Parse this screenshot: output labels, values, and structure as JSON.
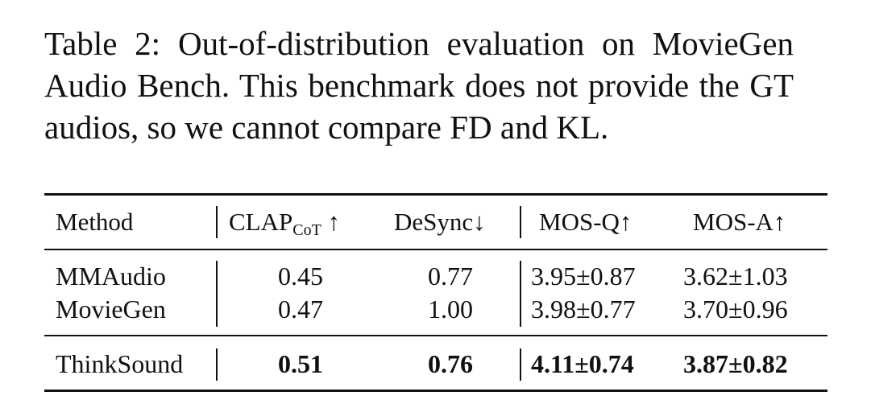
{
  "caption": {
    "label": "Table 2:",
    "text": "Out-of-distribution evaluation on MovieGen Audio Bench. This benchmark does not provide the GT audios, so we cannot compare FD and KL."
  },
  "table": {
    "headers": {
      "method": "Method",
      "clap": "CLAP",
      "clap_sub": "CoT",
      "clap_arrow": "↑",
      "desync": "DeSync↓",
      "mos_q": "MOS-Q↑",
      "mos_a": "MOS-A↑"
    },
    "rows": [
      {
        "method": "MMAudio",
        "clap": "0.45",
        "desync": "0.77",
        "mos_q": "3.95±0.87",
        "mos_a": "3.62±1.03"
      },
      {
        "method": "MovieGen",
        "clap": "0.47",
        "desync": "1.00",
        "mos_q": "3.98±0.77",
        "mos_a": "3.70±0.96"
      }
    ],
    "ours": {
      "method": "ThinkSound",
      "clap": "0.51",
      "desync": "0.76",
      "mos_q": "4.11±0.74",
      "mos_a": "3.87±0.82"
    }
  }
}
